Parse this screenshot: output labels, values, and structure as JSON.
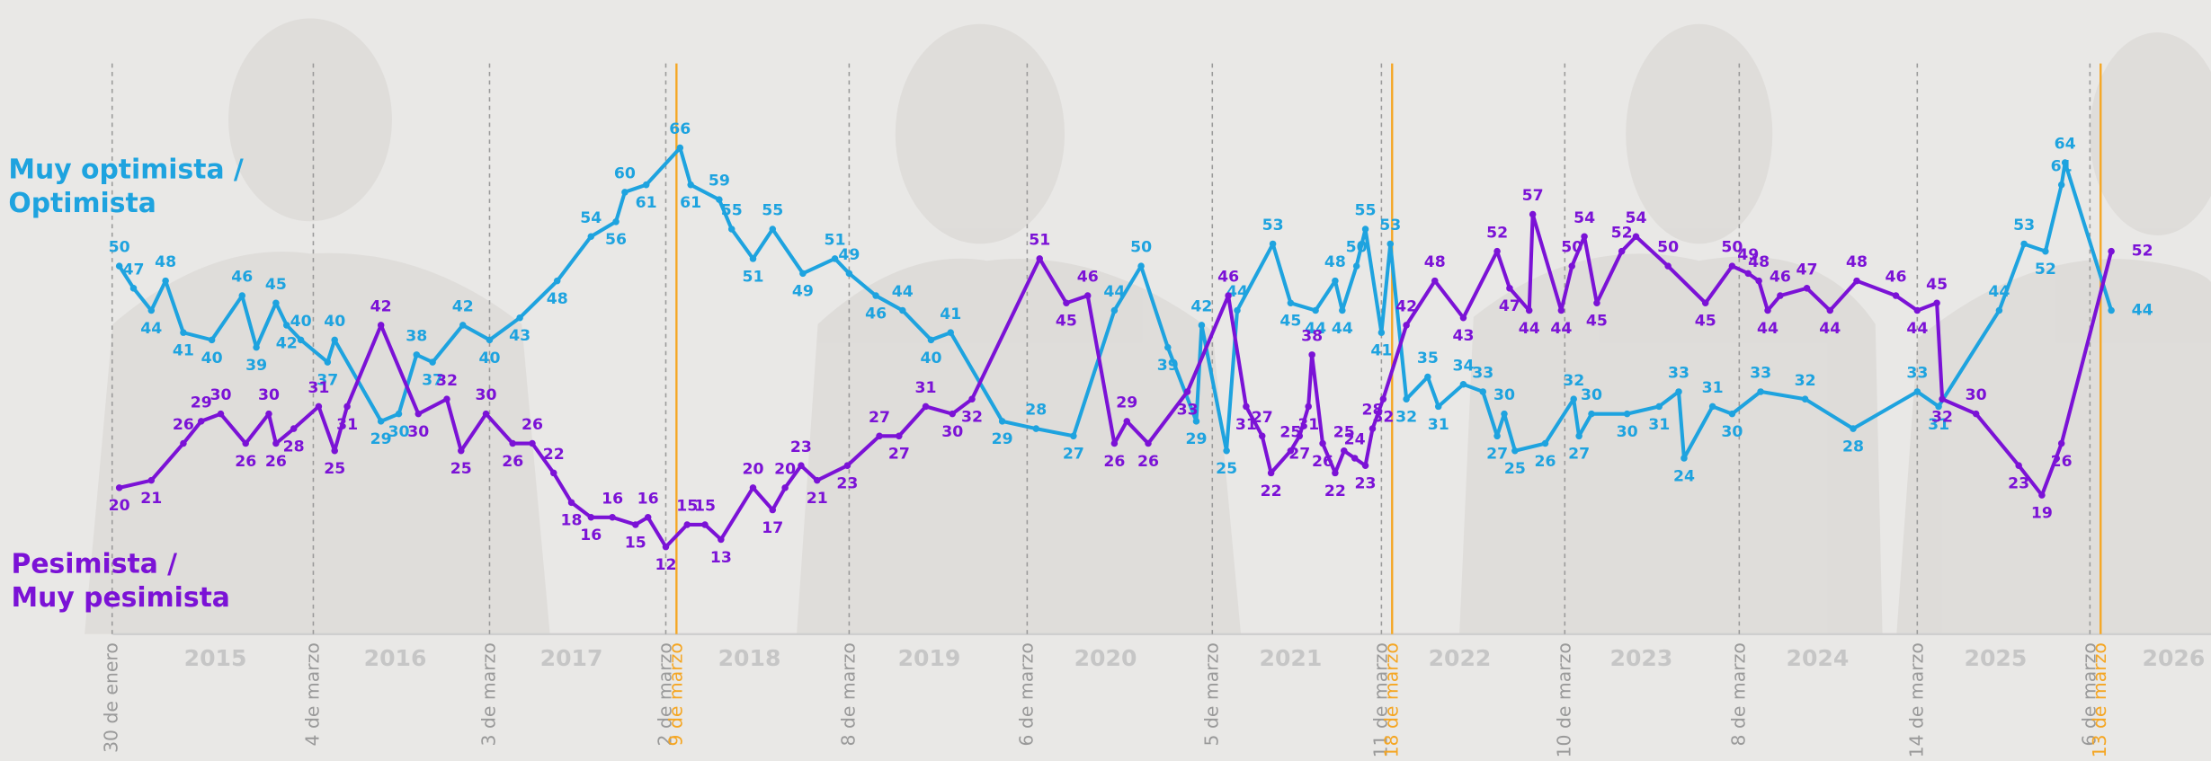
{
  "chart_data": {
    "type": "line",
    "xlim": [
      2014.45,
      2026.87
    ],
    "ylim": [
      0,
      86
    ],
    "xticks": [
      {
        "value": 2015.66,
        "label": "2015"
      },
      {
        "value": 2016.67,
        "label": "2016"
      },
      {
        "value": 2017.66,
        "label": "2017"
      },
      {
        "value": 2018.66,
        "label": "2018"
      },
      {
        "value": 2019.67,
        "label": "2019"
      },
      {
        "value": 2020.66,
        "label": "2020"
      },
      {
        "value": 2021.7,
        "label": "2021"
      },
      {
        "value": 2022.65,
        "label": "2022"
      },
      {
        "value": 2023.67,
        "label": "2023"
      },
      {
        "value": 2024.66,
        "label": "2024"
      },
      {
        "value": 2025.66,
        "label": "2025"
      },
      {
        "value": 2026.66,
        "label": "2026"
      }
    ],
    "markers": [
      {
        "x": 2015.08,
        "label": "30 de enero",
        "color": "#9a9a9a"
      },
      {
        "x": 2016.21,
        "label": "4 de marzo",
        "color": "#9a9a9a"
      },
      {
        "x": 2017.2,
        "label": "3 de marzo",
        "color": "#9a9a9a"
      },
      {
        "x": 2018.19,
        "label": "2 de marzo",
        "color": "#9a9a9a"
      },
      {
        "x": 2018.25,
        "label": "9 de marzo",
        "color": "#f5a623"
      },
      {
        "x": 2019.22,
        "label": "8 de marzo",
        "color": "#9a9a9a"
      },
      {
        "x": 2020.22,
        "label": "6 de marzo",
        "color": "#9a9a9a"
      },
      {
        "x": 2021.26,
        "label": "5 de marzo",
        "color": "#9a9a9a"
      },
      {
        "x": 2022.21,
        "label": "11 de marzo",
        "color": "#9a9a9a"
      },
      {
        "x": 2022.27,
        "label": "18 de marzo",
        "color": "#f5a623"
      },
      {
        "x": 2023.24,
        "label": "10 de marzo",
        "color": "#9a9a9a"
      },
      {
        "x": 2024.22,
        "label": "8 de marzo",
        "color": "#9a9a9a"
      },
      {
        "x": 2025.22,
        "label": "14 de marzo",
        "color": "#9a9a9a"
      },
      {
        "x": 2026.19,
        "label": "6 de marzo",
        "color": "#9a9a9a"
      },
      {
        "x": 2026.25,
        "label": "13 de marzo",
        "color": "#f5a623"
      }
    ],
    "series": [
      {
        "label_lines": [
          "Muy optimista /",
          "Optimista"
        ],
        "color": "#1ea3df",
        "x": [
          2015.12,
          2015.2,
          2015.3,
          2015.38,
          2015.48,
          2015.64,
          2015.81,
          2015.89,
          2016.0,
          2016.06,
          2016.14,
          2016.29,
          2016.33,
          2016.59,
          2016.69,
          2016.79,
          2016.88,
          2017.05,
          2017.2,
          2017.37,
          2017.58,
          2017.77,
          2017.91,
          2017.96,
          2018.08,
          2018.27,
          2018.33,
          2018.49,
          2018.56,
          2018.68,
          2018.79,
          2018.96,
          2019.14,
          2019.22,
          2019.37,
          2019.52,
          2019.68,
          2019.79,
          2020.08,
          2020.27,
          2020.48,
          2020.71,
          2020.86,
          2021.01,
          2021.17,
          2021.2,
          2021.34,
          2021.4,
          2021.6,
          2021.7,
          2021.84,
          2021.95,
          2021.99,
          2022.07,
          2022.12,
          2022.21,
          2022.26,
          2022.35,
          2022.47,
          2022.53,
          2022.67,
          2022.78,
          2022.86,
          2022.9,
          2022.96,
          2023.13,
          2023.29,
          2023.32,
          2023.39,
          2023.59,
          2023.77,
          2023.88,
          2023.91,
          2024.07,
          2024.18,
          2024.34,
          2024.59,
          2024.86,
          2025.22,
          2025.34,
          2025.68,
          2025.82,
          2025.94,
          2026.03,
          2026.05,
          2026.31
        ],
        "values": [
          50,
          47,
          44,
          48,
          41,
          40,
          46,
          39,
          45,
          42,
          40,
          37,
          40,
          29,
          30,
          38,
          37,
          42,
          40,
          43,
          48,
          54,
          56,
          60,
          61,
          66,
          61,
          59,
          55,
          51,
          55,
          49,
          51,
          49,
          46,
          44,
          40,
          41,
          29,
          28,
          27,
          44,
          50,
          39,
          29,
          42,
          25,
          44,
          53,
          45,
          44,
          48,
          44,
          50,
          55,
          41,
          53,
          32,
          35,
          31,
          34,
          33,
          27,
          30,
          25,
          26,
          32,
          27,
          30,
          30,
          31,
          33,
          24,
          31,
          30,
          33,
          32,
          28,
          33,
          31,
          44,
          53,
          52,
          61,
          64,
          44
        ]
      },
      {
        "label_lines": [
          "Pesimista /",
          "Muy pesimista"
        ],
        "color": "#7b12d6",
        "x": [
          2015.12,
          2015.3,
          2015.48,
          2015.58,
          2015.69,
          2015.83,
          2015.96,
          2016.0,
          2016.1,
          2016.24,
          2016.33,
          2016.4,
          2016.59,
          2016.8,
          2016.96,
          2017.04,
          2017.18,
          2017.33,
          2017.44,
          2017.56,
          2017.66,
          2017.77,
          2017.89,
          2018.02,
          2018.09,
          2018.19,
          2018.31,
          2018.41,
          2018.5,
          2018.68,
          2018.79,
          2018.86,
          2018.95,
          2019.04,
          2019.21,
          2019.39,
          2019.5,
          2019.65,
          2019.8,
          2019.91,
          2020.29,
          2020.44,
          2020.56,
          2020.71,
          2020.78,
          2020.9,
          2021.12,
          2021.35,
          2021.45,
          2021.54,
          2021.59,
          2021.7,
          2021.75,
          2021.8,
          2021.82,
          2021.88,
          2021.95,
          2022.0,
          2022.06,
          2022.12,
          2022.16,
          2022.22,
          2022.35,
          2022.51,
          2022.67,
          2022.86,
          2022.93,
          2023.04,
          2023.06,
          2023.22,
          2023.28,
          2023.35,
          2023.42,
          2023.56,
          2023.64,
          2023.82,
          2024.03,
          2024.18,
          2024.27,
          2024.33,
          2024.38,
          2024.45,
          2024.6,
          2024.73,
          2024.88,
          2025.1,
          2025.22,
          2025.33,
          2025.36,
          2025.55,
          2025.79,
          2025.92,
          2026.03,
          2026.31
        ],
        "values": [
          20,
          21,
          26,
          29,
          30,
          26,
          30,
          26,
          28,
          31,
          25,
          31,
          42,
          30,
          32,
          25,
          30,
          26,
          26,
          22,
          18,
          16,
          16,
          15,
          16,
          12,
          15,
          15,
          13,
          20,
          17,
          20,
          23,
          21,
          23,
          27,
          27,
          31,
          30,
          32,
          51,
          45,
          46,
          26,
          29,
          26,
          33,
          46,
          31,
          27,
          22,
          25,
          27,
          31,
          38,
          26,
          22,
          25,
          24,
          23,
          28,
          32,
          42,
          48,
          43,
          52,
          47,
          44,
          57,
          44,
          50,
          54,
          45,
          52,
          54,
          50,
          45,
          50,
          49,
          48,
          44,
          46,
          47,
          44,
          48,
          46,
          44,
          45,
          32,
          30,
          23,
          19,
          26,
          52
        ]
      }
    ]
  }
}
